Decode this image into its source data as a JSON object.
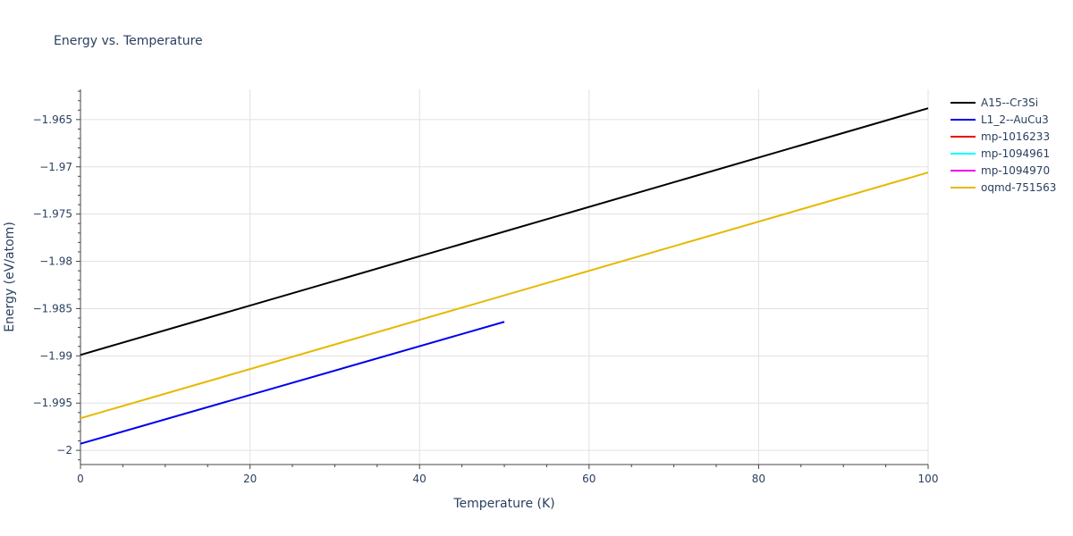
{
  "chart_data": {
    "type": "line",
    "title": "Energy vs. Temperature",
    "xlabel": "Temperature (K)",
    "ylabel": "Energy (eV/atom)",
    "xlim": [
      0,
      100
    ],
    "ylim": [
      -2.0015,
      -1.9618
    ],
    "x_ticks": [
      0,
      20,
      40,
      60,
      80,
      100
    ],
    "x_tick_labels": [
      "0",
      "20",
      "40",
      "60",
      "80",
      "100"
    ],
    "y_ticks": [
      -2.0,
      -1.995,
      -1.99,
      -1.985,
      -1.98,
      -1.975,
      -1.97,
      -1.965
    ],
    "y_tick_labels": [
      "−2",
      "−1.995",
      "−1.99",
      "−1.985",
      "−1.98",
      "−1.975",
      "−1.97",
      "−1.965"
    ],
    "grid": true,
    "legend_position": "top-right-outside",
    "series": [
      {
        "name": "A15--Cr3Si",
        "color": "#000000",
        "x": [
          0,
          100
        ],
        "y": [
          -1.9899,
          -1.9638
        ]
      },
      {
        "name": "L1_2--AuCu3",
        "color": "#0000ee",
        "x": [
          0,
          50
        ],
        "y": [
          -1.9993,
          -1.9864
        ]
      },
      {
        "name": "mp-1016233",
        "color": "#ee0000",
        "x": [],
        "y": []
      },
      {
        "name": "mp-1094961",
        "color": "#00ffff",
        "x": [],
        "y": []
      },
      {
        "name": "mp-1094970",
        "color": "#ee00ee",
        "x": [],
        "y": []
      },
      {
        "name": "oqmd-751563",
        "color": "#e6b800",
        "x": [
          0,
          100
        ],
        "y": [
          -1.9966,
          -1.9706
        ]
      }
    ]
  }
}
